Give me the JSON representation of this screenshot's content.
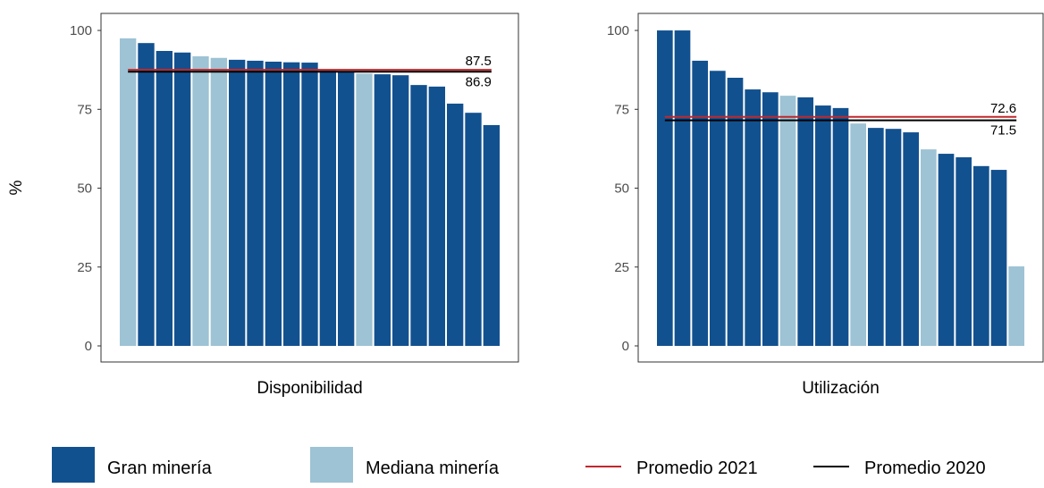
{
  "chart_data": [
    {
      "type": "bar",
      "x_label": "Disponibilidad",
      "y_label": "%",
      "ylim": [
        -5.1,
        105.4
      ],
      "yticks": [
        0,
        25,
        50,
        75,
        100
      ],
      "series": [
        {
          "name": "Gran minería",
          "color": "#12518f",
          "values": [
            null,
            96,
            93.5,
            93,
            null,
            null,
            90.7,
            90.4,
            90.1,
            89.9,
            89.8,
            87.2,
            86.9,
            null,
            86.1,
            85.8,
            82.7,
            82.2,
            76.8,
            73.9,
            70
          ]
        },
        {
          "name": "Mediana minería",
          "color": "#9dc3d4",
          "values": [
            97.5,
            null,
            null,
            null,
            91.8,
            91.3,
            null,
            null,
            null,
            null,
            null,
            null,
            null,
            86.3,
            null,
            null,
            null,
            null,
            null,
            null,
            null
          ]
        }
      ],
      "reference_lines": [
        {
          "name": "Promedio 2021",
          "color": "#c0282d",
          "value": 87.5
        },
        {
          "name": "Promedio 2020",
          "color": "#000000",
          "value": 86.9
        }
      ]
    },
    {
      "type": "bar",
      "x_label": "Utilización",
      "ylim": [
        -5.1,
        105.4
      ],
      "yticks": [
        0,
        25,
        50,
        75,
        100
      ],
      "series": [
        {
          "color": "#12518f",
          "values": [
            100,
            100,
            90.4,
            87.2,
            85,
            81.3,
            80.4,
            null,
            78.8,
            76.2,
            75.4,
            null,
            69.1,
            68.8,
            67.7,
            null,
            60.9,
            59.8,
            57,
            55.8,
            null
          ]
        },
        {
          "color": "#9dc3d4",
          "values": [
            null,
            null,
            null,
            null,
            null,
            null,
            null,
            79.3,
            null,
            null,
            null,
            70.5,
            null,
            null,
            null,
            62.3,
            null,
            null,
            null,
            null,
            25.2
          ]
        }
      ],
      "reference_lines": [
        {
          "color": "#c0282d",
          "value": 72.6
        },
        {
          "color": "#000000",
          "value": 71.5
        }
      ]
    }
  ]
}
